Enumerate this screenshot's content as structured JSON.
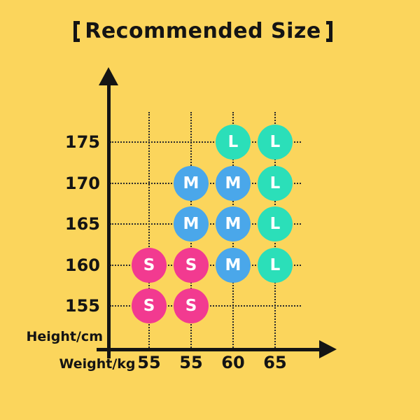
{
  "title": {
    "full": "【Recommended Size】",
    "text": "Recommended Size"
  },
  "colors": {
    "background": "#FBD55C",
    "axis": "#141414",
    "grid": "#2b2b2b",
    "text": "#141414",
    "size_S": "#F23A90",
    "size_M": "#4AA7EA",
    "size_L": "#2BDFB9",
    "marker_text": "#FFFFFF"
  },
  "chart_data": {
    "type": "scatter",
    "title": "【Recommended Size】",
    "xlabel": "Weight/kg",
    "ylabel": "Height/cm",
    "x_tick_labels": [
      "55",
      "55",
      "60",
      "65"
    ],
    "y_tick_labels": [
      "175",
      "170",
      "165",
      "160",
      "155"
    ],
    "grid": true,
    "legend_position": "none",
    "points": [
      {
        "height": "175",
        "weight": "60",
        "size": "L",
        "row": 0,
        "col": 2
      },
      {
        "height": "175",
        "weight": "65",
        "size": "L",
        "row": 0,
        "col": 3
      },
      {
        "height": "170",
        "weight": "55",
        "size": "M",
        "row": 1,
        "col": 1
      },
      {
        "height": "170",
        "weight": "60",
        "size": "M",
        "row": 1,
        "col": 2
      },
      {
        "height": "170",
        "weight": "65",
        "size": "L",
        "row": 1,
        "col": 3
      },
      {
        "height": "165",
        "weight": "55",
        "size": "M",
        "row": 2,
        "col": 1
      },
      {
        "height": "165",
        "weight": "60",
        "size": "M",
        "row": 2,
        "col": 2
      },
      {
        "height": "165",
        "weight": "65",
        "size": "L",
        "row": 2,
        "col": 3
      },
      {
        "height": "160",
        "weight": "55",
        "size": "S",
        "row": 3,
        "col": 0
      },
      {
        "height": "160",
        "weight": "55",
        "size": "S",
        "row": 3,
        "col": 1
      },
      {
        "height": "160",
        "weight": "60",
        "size": "M",
        "row": 3,
        "col": 2
      },
      {
        "height": "160",
        "weight": "65",
        "size": "L",
        "row": 3,
        "col": 3
      },
      {
        "height": "155",
        "weight": "55",
        "size": "S",
        "row": 4,
        "col": 0
      },
      {
        "height": "155",
        "weight": "55",
        "size": "S",
        "row": 4,
        "col": 1
      }
    ]
  }
}
